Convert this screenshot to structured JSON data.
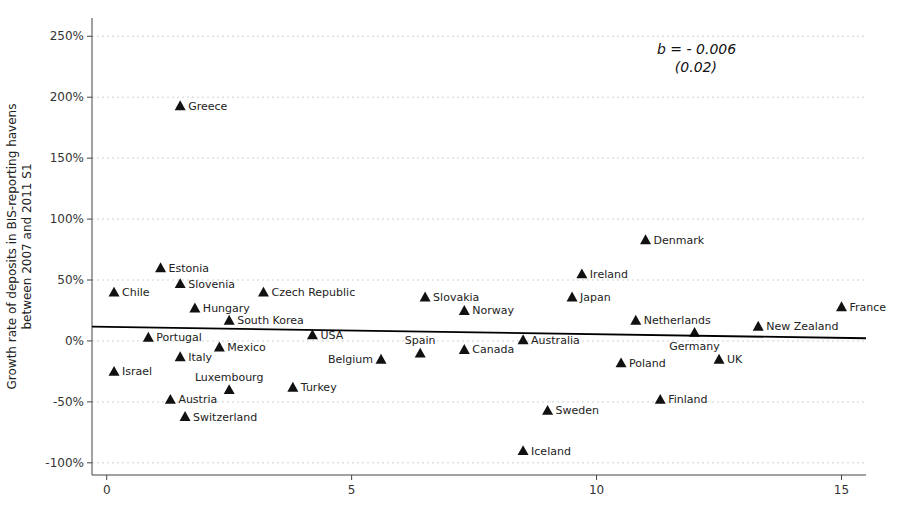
{
  "chart_data": {
    "type": "scatter",
    "ylabel": "Growth rate of deposits in BIS-reporting havens\nbetween 2007 and 2011 S1",
    "annotation": "b = - 0.006\n    (0.02)",
    "xlim": [
      -0.3,
      15.5
    ],
    "ylim": [
      -1.1,
      2.65
    ],
    "xticks": [
      0,
      5,
      10,
      15
    ],
    "yticks": [
      {
        "value": -1.0,
        "label": "-100%"
      },
      {
        "value": -0.5,
        "label": "-50%"
      },
      {
        "value": 0.0,
        "label": "0%"
      },
      {
        "value": 0.5,
        "label": "50%"
      },
      {
        "value": 1.0,
        "label": "100%"
      },
      {
        "value": 1.5,
        "label": "150%"
      },
      {
        "value": 2.0,
        "label": "200%"
      },
      {
        "value": 2.5,
        "label": "250%"
      }
    ],
    "grid": "y",
    "series": [
      {
        "type": "scatter",
        "marker": "triangle",
        "color": "#111111",
        "labels": [
          "Greece",
          "Chile",
          "Estonia",
          "Slovenia",
          "Hungary",
          "South Korea",
          "Czech Republic",
          "Portugal",
          "Israel",
          "Italy",
          "Mexico",
          "USA",
          "Austria",
          "Switzerland",
          "Luxembourg",
          "Turkey",
          "Belgium",
          "Slovakia",
          "Spain",
          "Norway",
          "Canada",
          "Australia",
          "Iceland",
          "Sweden",
          "Japan",
          "Ireland",
          "Denmark",
          "Netherlands",
          "Finland",
          "Poland",
          "Germany",
          "UK",
          "New Zealand",
          "France"
        ],
        "x": [
          1.5,
          0.15,
          1.1,
          1.5,
          1.8,
          2.5,
          3.2,
          0.85,
          0.15,
          1.5,
          2.3,
          4.2,
          1.3,
          1.6,
          2.5,
          3.8,
          5.6,
          6.5,
          6.4,
          7.3,
          7.3,
          8.5,
          8.5,
          9.0,
          9.5,
          9.7,
          11.0,
          10.8,
          11.3,
          10.5,
          12.0,
          12.5,
          13.3,
          15.0
        ],
        "values": [
          1.93,
          0.4,
          0.6,
          0.47,
          0.27,
          0.17,
          0.4,
          0.03,
          -0.25,
          -0.13,
          -0.05,
          0.05,
          -0.48,
          -0.62,
          -0.4,
          -0.38,
          -0.15,
          0.36,
          -0.1,
          0.25,
          -0.07,
          0.01,
          -0.9,
          -0.57,
          0.36,
          0.55,
          0.83,
          0.17,
          -0.48,
          -0.18,
          0.07,
          -0.15,
          0.12,
          0.28
        ]
      },
      {
        "type": "line",
        "color": "#000000",
        "x": [
          -0.3,
          15.5
        ],
        "values": [
          0.1168,
          0.022
        ]
      }
    ]
  }
}
